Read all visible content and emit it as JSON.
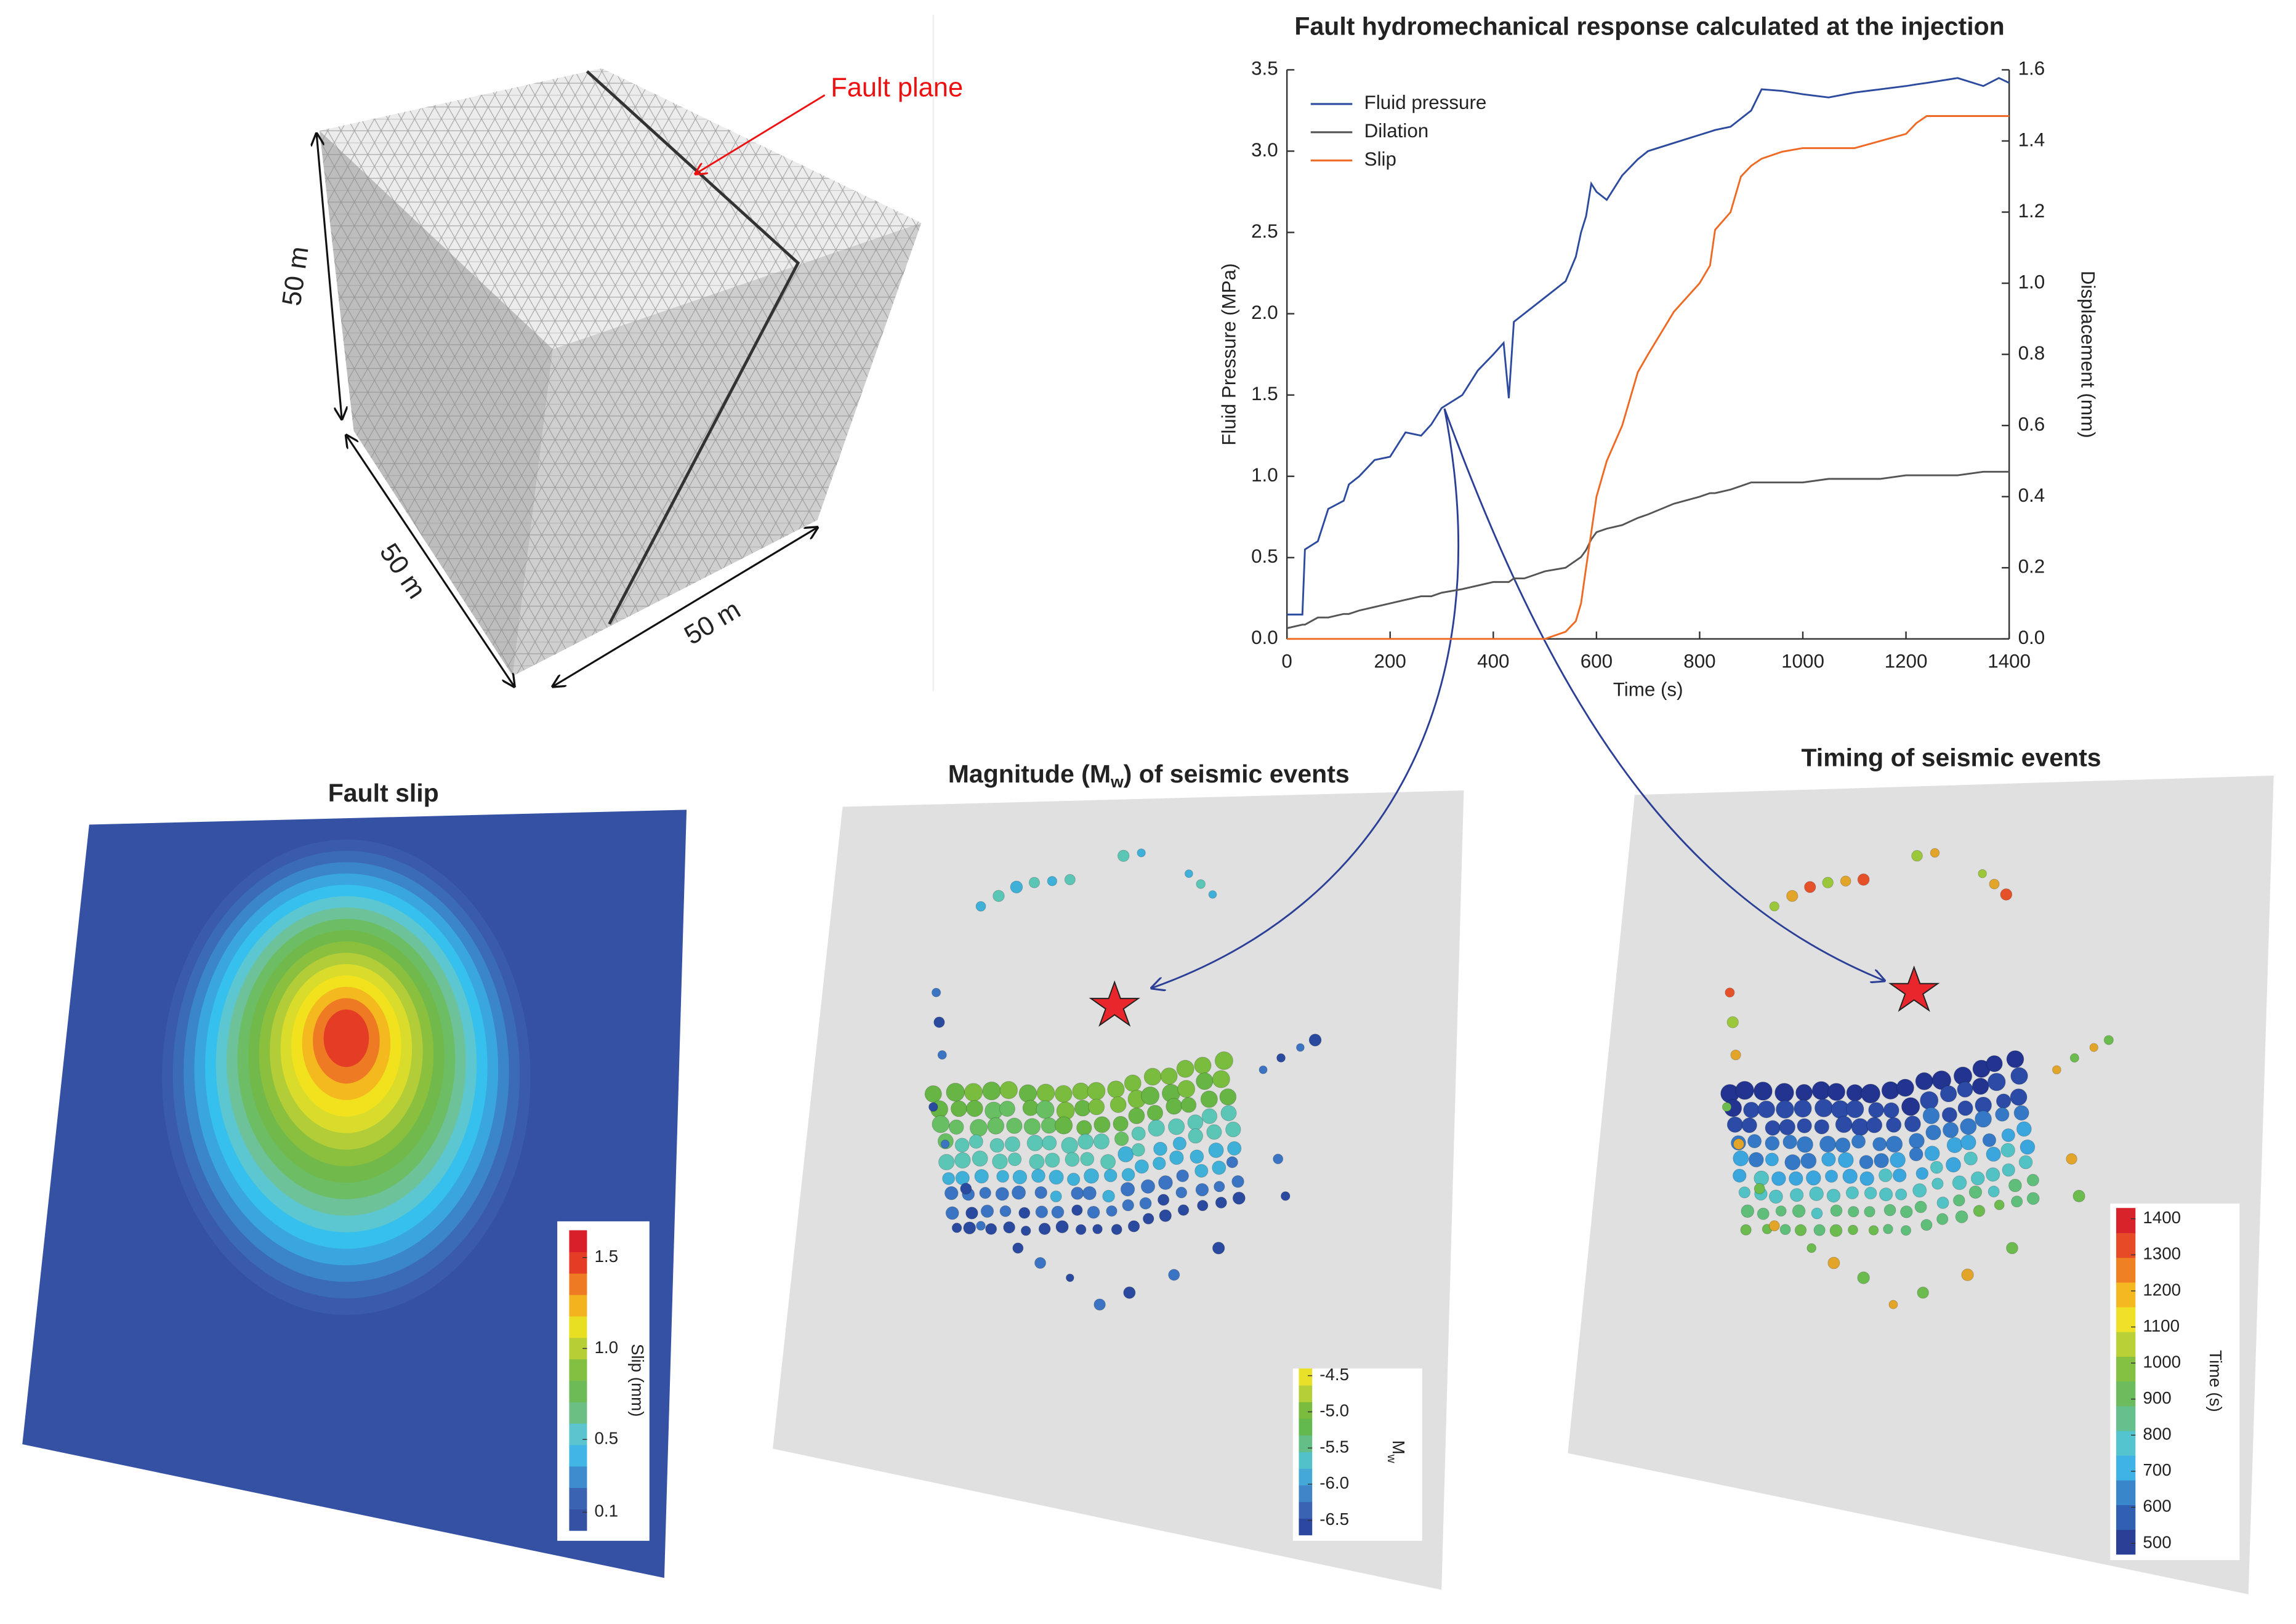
{
  "cube": {
    "dims": [
      "50 m",
      "50 m",
      "50 m"
    ],
    "annotation": "Fault plane"
  },
  "chart_data": {
    "type": "line",
    "title": "Fault hydromechanical response calculated at the injection",
    "xlabel": "Time (s)",
    "ylabel": "Fluid Pressure (MPa)",
    "y2label": "Displacement (mm)",
    "x": [
      0,
      30,
      35,
      60,
      80,
      110,
      120,
      140,
      170,
      200,
      230,
      260,
      280,
      300,
      340,
      370,
      400,
      420,
      430,
      440,
      460,
      500,
      540,
      560,
      570,
      580,
      590,
      600,
      620,
      650,
      680,
      700,
      750,
      800,
      820,
      830,
      860,
      880,
      900,
      920,
      960,
      1000,
      1050,
      1100,
      1150,
      1200,
      1220,
      1240,
      1300,
      1350,
      1380,
      1400
    ],
    "series": [
      {
        "name": "Fluid pressure",
        "color": "#2c4a9e",
        "axis": "y",
        "values": [
          0.15,
          0.15,
          0.55,
          0.6,
          0.8,
          0.85,
          0.95,
          1.0,
          1.1,
          1.12,
          1.27,
          1.25,
          1.32,
          1.42,
          1.5,
          1.65,
          1.75,
          1.82,
          1.48,
          1.95,
          2.0,
          2.1,
          2.2,
          2.35,
          2.5,
          2.6,
          2.8,
          2.75,
          2.7,
          2.85,
          2.95,
          3.0,
          3.05,
          3.1,
          3.12,
          3.13,
          3.15,
          3.2,
          3.25,
          3.38,
          3.37,
          3.35,
          3.33,
          3.36,
          3.38,
          3.4,
          3.41,
          3.42,
          3.45,
          3.4,
          3.45,
          3.42
        ]
      },
      {
        "name": "Dilation",
        "color": "#555555",
        "axis": "y2",
        "values": [
          0.03,
          0.04,
          0.04,
          0.06,
          0.06,
          0.07,
          0.07,
          0.08,
          0.09,
          0.1,
          0.11,
          0.12,
          0.12,
          0.13,
          0.14,
          0.15,
          0.16,
          0.16,
          0.16,
          0.17,
          0.17,
          0.19,
          0.2,
          0.22,
          0.23,
          0.25,
          0.28,
          0.3,
          0.31,
          0.32,
          0.34,
          0.35,
          0.38,
          0.4,
          0.41,
          0.41,
          0.42,
          0.43,
          0.44,
          0.44,
          0.44,
          0.44,
          0.45,
          0.45,
          0.45,
          0.46,
          0.46,
          0.46,
          0.46,
          0.47,
          0.47,
          0.47
        ]
      },
      {
        "name": "Slip",
        "color": "#ee6a24",
        "axis": "y2",
        "values": [
          0,
          0,
          0,
          0,
          0,
          0,
          0,
          0,
          0,
          0,
          0,
          0,
          0,
          0,
          0,
          0,
          0,
          0,
          0,
          0,
          0,
          0,
          0.02,
          0.05,
          0.1,
          0.2,
          0.3,
          0.4,
          0.5,
          0.6,
          0.75,
          0.8,
          0.92,
          1.0,
          1.05,
          1.15,
          1.2,
          1.3,
          1.33,
          1.35,
          1.37,
          1.38,
          1.38,
          1.38,
          1.4,
          1.42,
          1.45,
          1.47,
          1.47,
          1.47,
          1.47,
          1.47
        ]
      }
    ],
    "xlim": [
      0,
      1400
    ],
    "xticks": [
      0,
      200,
      400,
      600,
      800,
      1000,
      1200,
      1400
    ],
    "ylim": [
      0,
      3.5
    ],
    "yticks": [
      {
        "value": 0,
        "label": "0.0"
      },
      0.5,
      {
        "value": 1,
        "label": "1.0"
      },
      1.5,
      {
        "value": 2,
        "label": "2.0"
      },
      2.5,
      {
        "value": 3,
        "label": "3.0"
      },
      3.5
    ],
    "y2lim": [
      0,
      1.6
    ],
    "y2ticks": [
      {
        "value": 0,
        "label": "0.0"
      },
      0.2,
      0.4,
      0.6,
      0.8,
      {
        "value": 1,
        "label": "1.0"
      },
      1.2,
      1.4,
      1.6
    ],
    "legend": "upper left"
  },
  "panels": [
    {
      "title": [
        "Fault slip"
      ],
      "colorbar": {
        "label": [
          "Slip (mm)"
        ],
        "lim": [
          0,
          1.65
        ],
        "ticks": [
          0.1,
          0.5,
          {
            "value": 1,
            "label": "1.0"
          },
          1.5
        ]
      }
    },
    {
      "title": [
        "Magnitude (M",
        "w",
        ") of seismic events"
      ],
      "colorbar": {
        "label": [
          "M",
          "w"
        ],
        "lim": [
          -6.7,
          -4.4
        ],
        "ticks": [
          -4.5,
          {
            "value": -5,
            "label": "-5.0"
          },
          -5.5,
          {
            "value": -6,
            "label": "-6.0"
          },
          -6.5
        ]
      }
    },
    {
      "title": [
        "Timing of seismic events"
      ],
      "colorbar": {
        "label": [
          "Time (s)"
        ],
        "lim": [
          470,
          1430
        ],
        "ticks": [
          1400,
          1300,
          1200,
          1100,
          1000,
          900,
          800,
          700,
          600,
          500
        ]
      }
    }
  ]
}
